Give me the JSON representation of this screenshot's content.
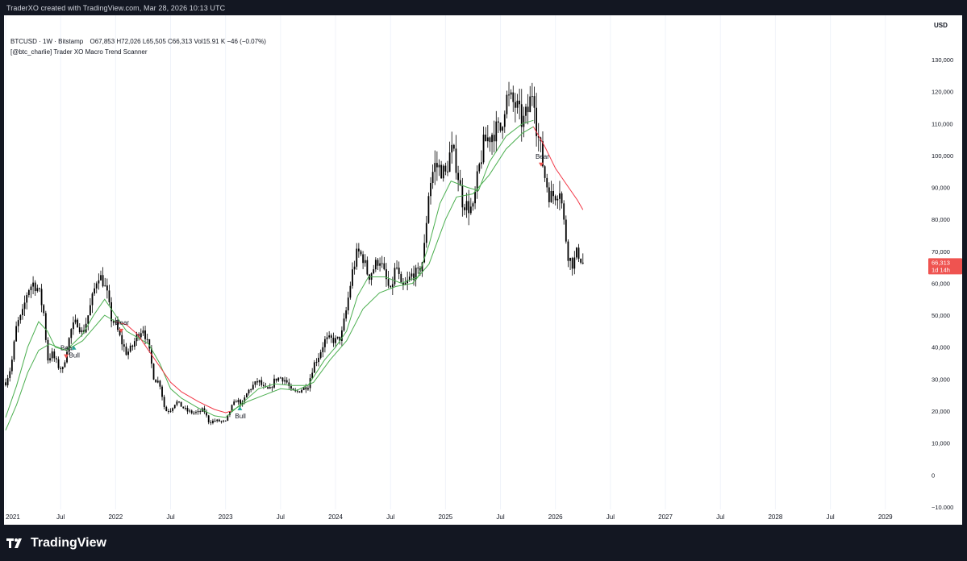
{
  "header": {
    "credit": "TraderXO created with TradingView.com, Mar 28, 2026 10:13 UTC"
  },
  "legend": {
    "symbol": "BTCUSD · 1W · Bitstamp",
    "ohlc": "O67,853  H72,026  L65,505  C66,313  Vol15.91 K  −46 (−0.07%)",
    "indicator": "[@btc_charlie] Trader XO Macro Trend Scanner"
  },
  "axis": {
    "currency": "USD",
    "last_price": "66,313",
    "countdown": "1d 14h"
  },
  "footer": {
    "brand": "TradingView"
  },
  "colors": {
    "bull": "#26a69a",
    "bear": "#ef5350",
    "fast_ema": "#4caf50",
    "slow_ema": "#f23645",
    "candle": "#000000"
  },
  "chart_data": {
    "type": "line",
    "title": "BTCUSD · 1W · Bitstamp",
    "ylim": [
      -10000,
      135000
    ],
    "y_ticks": [
      -10000,
      0,
      10000,
      20000,
      30000,
      40000,
      50000,
      60000,
      70000,
      80000,
      90000,
      100000,
      110000,
      120000,
      130000
    ],
    "y_tick_labels": [
      "−10,000",
      "0",
      "10,000",
      "20,000",
      "30,000",
      "40,000",
      "50,000",
      "60,000",
      "70,000",
      "80,000",
      "90,000",
      "100,000",
      "110,000",
      "120,000",
      "130,000"
    ],
    "x_ticks": [
      {
        "t": 2021.0,
        "label": "2021"
      },
      {
        "t": 2021.5,
        "label": "Jul"
      },
      {
        "t": 2022.0,
        "label": "2022"
      },
      {
        "t": 2022.5,
        "label": "Jul"
      },
      {
        "t": 2023.0,
        "label": "2023"
      },
      {
        "t": 2023.5,
        "label": "Jul"
      },
      {
        "t": 2024.0,
        "label": "2024"
      },
      {
        "t": 2024.5,
        "label": "Jul"
      },
      {
        "t": 2025.0,
        "label": "2025"
      },
      {
        "t": 2025.5,
        "label": "Jul"
      },
      {
        "t": 2026.0,
        "label": "2026"
      },
      {
        "t": 2026.5,
        "label": "Jul"
      },
      {
        "t": 2027.0,
        "label": "2027"
      },
      {
        "t": 2027.5,
        "label": "Jul"
      },
      {
        "t": 2028.0,
        "label": "2028"
      },
      {
        "t": 2028.5,
        "label": "Jul"
      },
      {
        "t": 2029.0,
        "label": "2029"
      }
    ],
    "price_path": [
      [
        2021.0,
        29000
      ],
      [
        2021.05,
        34000
      ],
      [
        2021.1,
        47000
      ],
      [
        2021.15,
        50000
      ],
      [
        2021.2,
        58000
      ],
      [
        2021.25,
        60000
      ],
      [
        2021.3,
        58000
      ],
      [
        2021.35,
        50000
      ],
      [
        2021.38,
        36000
      ],
      [
        2021.42,
        38000
      ],
      [
        2021.48,
        34000
      ],
      [
        2021.52,
        33000
      ],
      [
        2021.56,
        40000
      ],
      [
        2021.6,
        46000
      ],
      [
        2021.65,
        48000
      ],
      [
        2021.7,
        44000
      ],
      [
        2021.75,
        50000
      ],
      [
        2021.8,
        57000
      ],
      [
        2021.84,
        63000
      ],
      [
        2021.88,
        61000
      ],
      [
        2021.92,
        57000
      ],
      [
        2021.96,
        49000
      ],
      [
        2022.0,
        47000
      ],
      [
        2022.05,
        42000
      ],
      [
        2022.1,
        38000
      ],
      [
        2022.15,
        40000
      ],
      [
        2022.2,
        44000
      ],
      [
        2022.25,
        46000
      ],
      [
        2022.3,
        40000
      ],
      [
        2022.35,
        30000
      ],
      [
        2022.4,
        29000
      ],
      [
        2022.45,
        20000
      ],
      [
        2022.5,
        20500
      ],
      [
        2022.55,
        23000
      ],
      [
        2022.6,
        21500
      ],
      [
        2022.65,
        20000
      ],
      [
        2022.7,
        19500
      ],
      [
        2022.75,
        19500
      ],
      [
        2022.8,
        20500
      ],
      [
        2022.85,
        16500
      ],
      [
        2022.9,
        17000
      ],
      [
        2022.95,
        16800
      ],
      [
        2023.0,
        16600
      ],
      [
        2023.05,
        21000
      ],
      [
        2023.1,
        23500
      ],
      [
        2023.15,
        22000
      ],
      [
        2023.2,
        26000
      ],
      [
        2023.25,
        28000
      ],
      [
        2023.3,
        29500
      ],
      [
        2023.35,
        27000
      ],
      [
        2023.4,
        26500
      ],
      [
        2023.45,
        30000
      ],
      [
        2023.5,
        30500
      ],
      [
        2023.55,
        29500
      ],
      [
        2023.6,
        26000
      ],
      [
        2023.65,
        26000
      ],
      [
        2023.7,
        27000
      ],
      [
        2023.75,
        28000
      ],
      [
        2023.8,
        34500
      ],
      [
        2023.85,
        37500
      ],
      [
        2023.9,
        42000
      ],
      [
        2023.95,
        42500
      ],
      [
        2024.0,
        42000
      ],
      [
        2024.05,
        43000
      ],
      [
        2024.1,
        52000
      ],
      [
        2024.15,
        63000
      ],
      [
        2024.2,
        70000
      ],
      [
        2024.25,
        68000
      ],
      [
        2024.3,
        62000
      ],
      [
        2024.35,
        65000
      ],
      [
        2024.4,
        68000
      ],
      [
        2024.45,
        62000
      ],
      [
        2024.5,
        57000
      ],
      [
        2024.55,
        66000
      ],
      [
        2024.6,
        58000
      ],
      [
        2024.65,
        60000
      ],
      [
        2024.7,
        63000
      ],
      [
        2024.75,
        63000
      ],
      [
        2024.8,
        68000
      ],
      [
        2024.85,
        90000
      ],
      [
        2024.9,
        97000
      ],
      [
        2024.95,
        96000
      ],
      [
        2025.0,
        94000
      ],
      [
        2025.05,
        102000
      ],
      [
        2025.1,
        97000
      ],
      [
        2025.15,
        86000
      ],
      [
        2025.2,
        84000
      ],
      [
        2025.25,
        83000
      ],
      [
        2025.3,
        95000
      ],
      [
        2025.35,
        104000
      ],
      [
        2025.4,
        106000
      ],
      [
        2025.45,
        108000
      ],
      [
        2025.5,
        108000
      ],
      [
        2025.55,
        118000
      ],
      [
        2025.6,
        117000
      ],
      [
        2025.65,
        115000
      ],
      [
        2025.7,
        110000
      ],
      [
        2025.75,
        114000
      ],
      [
        2025.8,
        122000
      ],
      [
        2025.83,
        108000
      ],
      [
        2025.86,
        103000
      ],
      [
        2025.9,
        94000
      ],
      [
        2025.95,
        87000
      ],
      [
        2026.0,
        88000
      ],
      [
        2026.04,
        90000
      ],
      [
        2026.08,
        78000
      ],
      [
        2026.12,
        68000
      ],
      [
        2026.16,
        66000
      ],
      [
        2026.2,
        70000
      ],
      [
        2026.25,
        66313
      ]
    ],
    "series": [
      {
        "name": "",
        "values": [
          [
            2021.0,
            18000
          ],
          [
            2021.1,
            28000
          ],
          [
            2021.2,
            40000
          ],
          [
            2021.3,
            48000
          ],
          [
            2021.38,
            45000
          ],
          [
            2021.45,
            40000
          ],
          [
            2021.55,
            39000
          ],
          [
            2021.7,
            44000
          ],
          [
            2021.8,
            50000
          ],
          [
            2021.9,
            55000
          ],
          [
            2022.0,
            50000
          ],
          [
            2022.1,
            45000
          ],
          [
            2022.2,
            43000
          ],
          [
            2022.3,
            41000
          ],
          [
            2022.4,
            35000
          ],
          [
            2022.5,
            27000
          ],
          [
            2022.6,
            24000
          ],
          [
            2022.75,
            21000
          ],
          [
            2022.9,
            18500
          ],
          [
            2023.0,
            18000
          ],
          [
            2023.1,
            21000
          ],
          [
            2023.2,
            24000
          ],
          [
            2023.3,
            27000
          ],
          [
            2023.45,
            28500
          ],
          [
            2023.6,
            28000
          ],
          [
            2023.75,
            28000
          ],
          [
            2023.9,
            36000
          ],
          [
            2024.0,
            40000
          ],
          [
            2024.1,
            45000
          ],
          [
            2024.2,
            56000
          ],
          [
            2024.3,
            62000
          ],
          [
            2024.45,
            62000
          ],
          [
            2024.6,
            60000
          ],
          [
            2024.75,
            62000
          ],
          [
            2024.85,
            72000
          ],
          [
            2024.95,
            85000
          ],
          [
            2025.05,
            92000
          ],
          [
            2025.2,
            90000
          ],
          [
            2025.3,
            89000
          ],
          [
            2025.4,
            98000
          ],
          [
            2025.55,
            106000
          ],
          [
            2025.7,
            110000
          ],
          [
            2025.8,
            111000
          ]
        ]
      },
      {
        "name": "",
        "values": [
          [
            2021.0,
            14000
          ],
          [
            2021.1,
            22000
          ],
          [
            2021.2,
            32000
          ],
          [
            2021.3,
            39000
          ],
          [
            2021.4,
            41000
          ],
          [
            2021.55,
            39000
          ],
          [
            2021.7,
            42000
          ],
          [
            2021.8,
            46000
          ],
          [
            2021.9,
            50000
          ],
          [
            2022.0,
            48000
          ]
        ]
      },
      {
        "name": "",
        "values": [
          [
            2022.0,
            48000
          ],
          [
            2022.1,
            47000
          ],
          [
            2022.2,
            44000
          ],
          [
            2022.3,
            39000
          ],
          [
            2022.4,
            34000
          ],
          [
            2022.5,
            29000
          ],
          [
            2022.6,
            26000
          ],
          [
            2022.75,
            23000
          ],
          [
            2022.9,
            20500
          ],
          [
            2023.0,
            19500
          ],
          [
            2023.05,
            20000
          ]
        ]
      },
      {
        "name": "",
        "values": [
          [
            2023.05,
            20000
          ],
          [
            2023.2,
            23000
          ],
          [
            2023.35,
            25000
          ],
          [
            2023.5,
            27000
          ],
          [
            2023.65,
            26500
          ],
          [
            2023.8,
            29000
          ],
          [
            2023.95,
            36000
          ],
          [
            2024.1,
            42000
          ],
          [
            2024.25,
            52000
          ],
          [
            2024.4,
            57000
          ],
          [
            2024.55,
            59000
          ],
          [
            2024.7,
            60000
          ],
          [
            2024.85,
            66000
          ],
          [
            2025.0,
            80000
          ],
          [
            2025.1,
            87000
          ],
          [
            2025.25,
            88000
          ],
          [
            2025.4,
            94000
          ],
          [
            2025.55,
            102000
          ],
          [
            2025.7,
            107000
          ],
          [
            2025.8,
            109000
          ]
        ]
      },
      {
        "name": "",
        "values": [
          [
            2025.8,
            109000
          ],
          [
            2025.9,
            103000
          ],
          [
            2026.0,
            96000
          ],
          [
            2026.1,
            91000
          ],
          [
            2026.2,
            86000
          ],
          [
            2026.25,
            83000
          ]
        ]
      }
    ],
    "signals": [
      {
        "t": 2021.55,
        "price": 37000,
        "label": "Bear",
        "kind": "bear"
      },
      {
        "t": 2021.62,
        "price": 40000,
        "label": "Bull",
        "kind": "bull"
      },
      {
        "t": 2022.05,
        "price": 45000,
        "label": "Bear",
        "kind": "bear"
      },
      {
        "t": 2023.13,
        "price": 21000,
        "label": "Bull",
        "kind": "bull"
      },
      {
        "t": 2025.87,
        "price": 97000,
        "label": "Bear",
        "kind": "bear"
      }
    ]
  }
}
